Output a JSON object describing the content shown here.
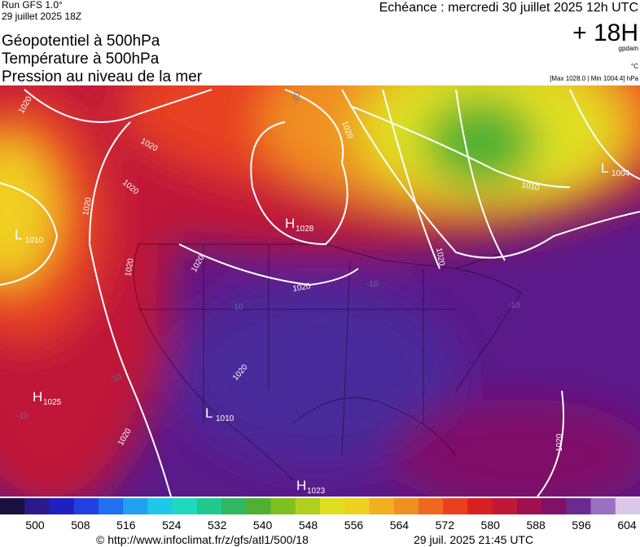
{
  "header": {
    "run": "Run GFS 1.0°",
    "run_date": "29 juillet 2025 18Z",
    "fields": [
      "Géopotentiel à 500hPa",
      "Température à 500hPa",
      "Pression au niveau de la mer"
    ],
    "valid_time": "Echéance : mercredi 30 juillet 2025 12h UTC",
    "lead": "+ 18H",
    "unit": "gpdam",
    "temp_unit": "°C",
    "range": "[Max 1028.0 | Min 1004.4] hPa"
  },
  "map": {
    "pressure_centers": [
      {
        "type": "H",
        "value": "1028"
      },
      {
        "type": "L",
        "value": "1004"
      },
      {
        "type": "L",
        "value": "1010"
      },
      {
        "type": "H",
        "value": "1025"
      },
      {
        "type": "L",
        "value": "1010"
      },
      {
        "type": "H",
        "value": "1023"
      }
    ],
    "isobar_labels": [
      "1020",
      "1020",
      "1020",
      "1020",
      "1020",
      "1020",
      "1020",
      "1020",
      "1020",
      "1020",
      "1020",
      "1020",
      "1010"
    ],
    "temperature_labels": [
      "-20",
      "-20",
      "-10",
      "-10",
      "-10",
      "-10",
      "-10"
    ]
  },
  "colorbar": {
    "colors": [
      "#1a1040",
      "#2a1a8a",
      "#1f20c0",
      "#2040e0",
      "#2070f0",
      "#20a0f0",
      "#20c8e8",
      "#20d8c0",
      "#20c890",
      "#30b860",
      "#50b030",
      "#80c020",
      "#b0d020",
      "#e0e020",
      "#f0d020",
      "#f0b020",
      "#f09020",
      "#f06820",
      "#e84020",
      "#d82020",
      "#c01838",
      "#a01050",
      "#801068",
      "#6a2a90",
      "#9a70c0",
      "#d8c8e8"
    ],
    "labels": [
      "500",
      "508",
      "516",
      "524",
      "532",
      "540",
      "548",
      "556",
      "564",
      "572",
      "580",
      "588",
      "596",
      "604"
    ]
  },
  "footer": {
    "source": "© http://www.infoclimat.fr/z/gfs/atl1/500/18",
    "generated": "29 juil. 2025 21:45 UTC"
  }
}
